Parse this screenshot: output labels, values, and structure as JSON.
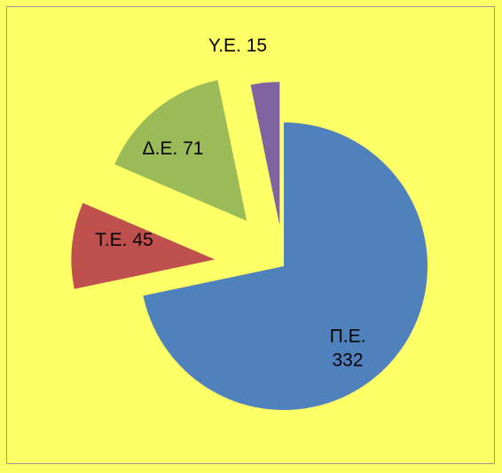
{
  "chart_data": {
    "type": "pie",
    "categories": [
      "Π.Ε.",
      "Τ.Ε.",
      "Δ.Ε.",
      "Υ.Ε."
    ],
    "values": [
      332,
      45,
      71,
      15
    ],
    "colors": [
      "#4f81bd",
      "#c0504d",
      "#9bbb59",
      "#8064a2"
    ],
    "exploded": true
  }
}
